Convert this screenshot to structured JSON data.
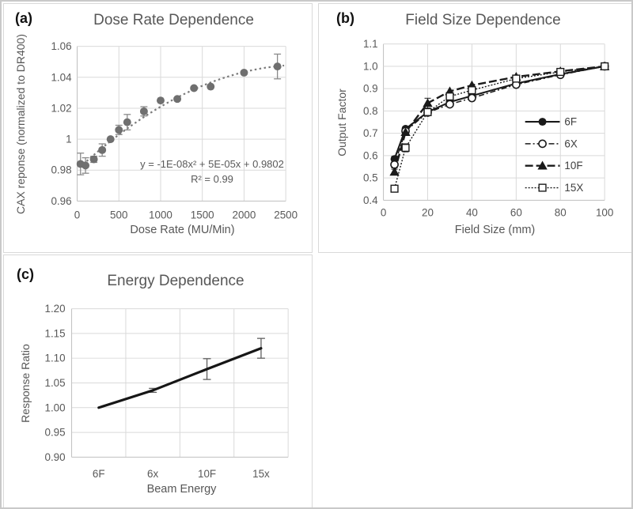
{
  "colors": {
    "grid": "#d9d9d9",
    "axis_line": "#bfbfbf",
    "tick_text": "#595959",
    "title_text": "#575757",
    "marker_gray": "#6f6f6f",
    "error_gray": "#8a8a8a",
    "trend_gray": "#7a7a7a",
    "ink": "#1a1a1a",
    "error_dark": "#5f5f5f",
    "panel_border": "#d9d9d9",
    "figure_border": "#c9c9c9"
  },
  "panels": {
    "a": {
      "corner_label": "(a)"
    },
    "b": {
      "corner_label": "(b)"
    },
    "c": {
      "corner_label": "(c)"
    }
  },
  "chart_data": [
    {
      "id": "dose-rate-dependence",
      "panel": "a",
      "type": "scatter",
      "title": "Dose Rate Dependence",
      "xlabel": "Dose Rate (MU/Min)",
      "ylabel": "CAX reponse (normalized to DR400)",
      "xlim": [
        0,
        2500
      ],
      "ylim": [
        0.96,
        1.06
      ],
      "xticks": [
        0,
        500,
        1000,
        1500,
        2000,
        2500
      ],
      "xtick_labels": [
        "0",
        "500",
        "1000",
        "1500",
        "2000",
        "2500"
      ],
      "yticks": [
        0.96,
        0.98,
        1.0,
        1.02,
        1.04,
        1.06
      ],
      "ytick_labels": [
        "0.96",
        "0.98",
        "1",
        "1.02",
        "1.04",
        "1.06"
      ],
      "grid": true,
      "annotation": {
        "line1": "y = -1E-08x² + 5E-05x + 0.9802",
        "line2": "R² = 0.99"
      },
      "trendline": {
        "style": "dotted",
        "draw_coeffs": [
          -9.2e-09,
          5e-05,
          0.9802
        ],
        "x_range": [
          30,
          2480
        ]
      },
      "points": {
        "x": [
          40,
          100,
          200,
          300,
          400,
          500,
          600,
          800,
          1000,
          1200,
          1400,
          1600,
          2000,
          2400
        ],
        "y": [
          0.984,
          0.983,
          0.987,
          0.993,
          1.0,
          1.006,
          1.011,
          1.018,
          1.025,
          1.026,
          1.033,
          1.034,
          1.043,
          1.047
        ],
        "yerr": [
          0.007,
          0.005,
          0.002,
          0.004,
          0,
          0.003,
          0.005,
          0.003,
          0,
          0,
          0,
          0,
          0,
          0.008
        ]
      }
    },
    {
      "id": "field-size-dependence",
      "panel": "b",
      "type": "line",
      "title": "Field Size Dependence",
      "xlabel": "Field Size (mm)",
      "ylabel": "Output Factor",
      "xlim": [
        0,
        100
      ],
      "ylim": [
        0.4,
        1.1
      ],
      "xticks": [
        0,
        20,
        40,
        60,
        80,
        100
      ],
      "xtick_labels": [
        "0",
        "20",
        "40",
        "60",
        "80",
        "100"
      ],
      "yticks": [
        0.4,
        0.5,
        0.6,
        0.7,
        0.8,
        0.9,
        1.0,
        1.1
      ],
      "ytick_labels": [
        "0.4",
        "0.5",
        "0.6",
        "0.7",
        "0.8",
        "0.9",
        "1.0",
        "1.1"
      ],
      "grid": true,
      "x": [
        5,
        10,
        20,
        30,
        40,
        60,
        80,
        100
      ],
      "series": [
        {
          "name": "6F",
          "marker": "filled-circle",
          "line_style": "solid",
          "values": [
            0.585,
            0.72,
            0.795,
            0.84,
            0.868,
            0.923,
            0.965,
            1.0
          ],
          "yerr": [
            0.012,
            0.01,
            0,
            0,
            0,
            0,
            0,
            0
          ]
        },
        {
          "name": "6X",
          "marker": "open-circle",
          "line_style": "dash-dot",
          "values": [
            0.56,
            0.71,
            0.793,
            0.83,
            0.858,
            0.918,
            0.962,
            1.0
          ],
          "yerr": [
            0.015,
            0,
            0,
            0,
            0,
            0,
            0,
            0
          ]
        },
        {
          "name": "10F",
          "marker": "filled-triangle",
          "line_style": "long-dash",
          "values": [
            0.527,
            0.705,
            0.835,
            0.888,
            0.915,
            0.953,
            0.978,
            1.0
          ],
          "yerr": [
            0.012,
            0,
            0.022,
            0,
            0,
            0,
            0,
            0
          ]
        },
        {
          "name": "15X",
          "marker": "open-square",
          "line_style": "dot",
          "values": [
            0.452,
            0.635,
            0.795,
            0.865,
            0.893,
            0.945,
            0.975,
            1.0
          ],
          "yerr": [
            0.012,
            0.018,
            0,
            0.01,
            0.015,
            0,
            0,
            0
          ]
        }
      ],
      "legend": {
        "position": "middle-right",
        "entries": [
          "6F",
          "6X",
          "10F",
          "15X"
        ]
      }
    },
    {
      "id": "energy-dependence",
      "panel": "c",
      "type": "line",
      "title": "Energy Dependence",
      "xlabel": "Beam Energy",
      "ylabel": "Response Ratio",
      "categories": [
        "6F",
        "6x",
        "10F",
        "15x"
      ],
      "ylim": [
        0.9,
        1.2
      ],
      "yticks": [
        0.9,
        0.95,
        1.0,
        1.05,
        1.1,
        1.15,
        1.2
      ],
      "ytick_labels": [
        "0.90",
        "0.95",
        "1.00",
        "1.05",
        "1.10",
        "1.15",
        "1.20"
      ],
      "grid": true,
      "values": [
        1.0,
        1.035,
        1.078,
        1.12
      ],
      "yerr": [
        0,
        0.004,
        0.021,
        0.02
      ]
    }
  ]
}
